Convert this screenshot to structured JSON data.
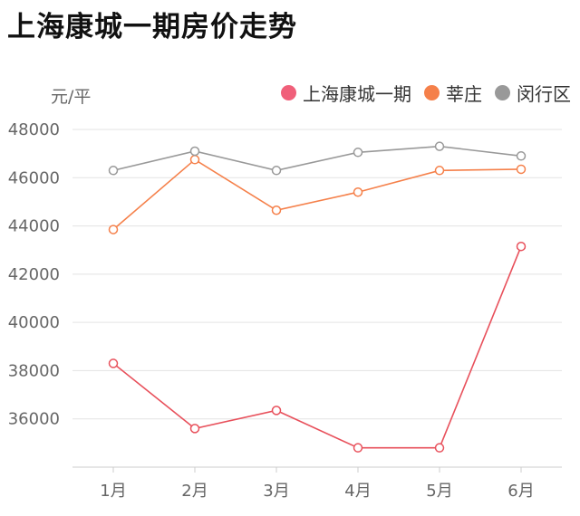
{
  "chart_data": {
    "type": "line",
    "title": "上海康城一期房价走势",
    "ylabel": "元/平",
    "xlabel": "",
    "categories": [
      "1月",
      "2月",
      "3月",
      "4月",
      "5月",
      "6月"
    ],
    "y_ticks": [
      "48000",
      "46000",
      "44000",
      "42000",
      "40000",
      "38000",
      "36000"
    ],
    "ylim": [
      34000,
      48000
    ],
    "grid": true,
    "legend_position": "top-right",
    "series": [
      {
        "name": "上海康城一期",
        "color": "#e8505b",
        "values": [
          38300,
          35600,
          36350,
          34800,
          34800,
          43150
        ]
      },
      {
        "name": "莘庄",
        "color": "#f5804a",
        "values": [
          43850,
          46750,
          44650,
          45400,
          46300,
          46350
        ]
      },
      {
        "name": "闵行区",
        "color": "#999999",
        "values": [
          46300,
          47100,
          46300,
          47050,
          47300,
          46900
        ]
      }
    ]
  }
}
